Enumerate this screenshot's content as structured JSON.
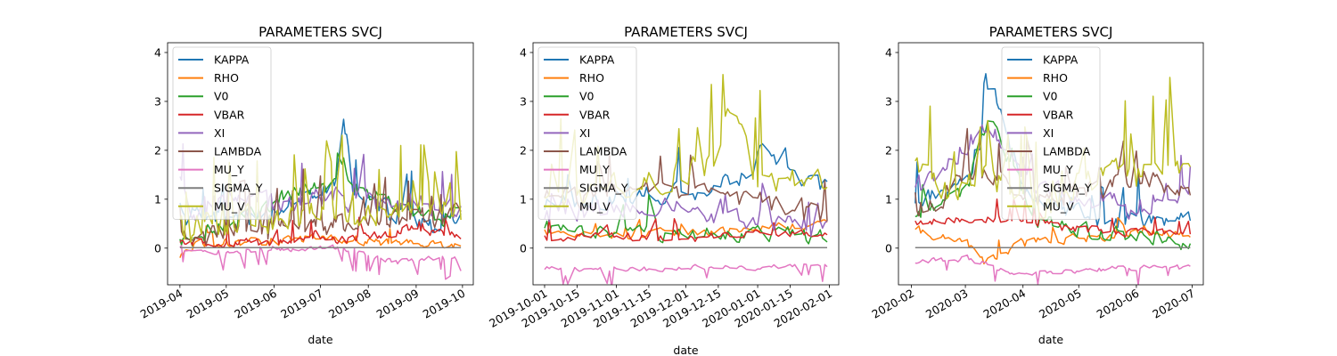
{
  "chart_data": [
    {
      "type": "line",
      "title": "PARAMETERS SVCJ",
      "xlabel": "date",
      "ylabel": "",
      "x_range": [
        "2019-04-01",
        "2019-09-30"
      ],
      "xlim": [
        "2019-03-24",
        "2019-10-08"
      ],
      "ylim": [
        -0.75,
        4.2
      ],
      "yticks": [
        0,
        1,
        2,
        3,
        4
      ],
      "xticks": [
        "2019-04",
        "2019-05",
        "2019-06",
        "2019-07",
        "2019-08",
        "2019-09",
        "2019-10"
      ],
      "legend_position": "upper-left",
      "series": [
        {
          "name": "KAPPA",
          "color": "#1f77b4",
          "anchors": [
            [
              0,
              0.9
            ],
            [
              5,
              0.6
            ],
            [
              12,
              0.8
            ],
            [
              20,
              0.5
            ],
            [
              30,
              0.8
            ],
            [
              40,
              0.6
            ],
            [
              55,
              0.7
            ],
            [
              70,
              0.9
            ],
            [
              80,
              1.0
            ],
            [
              90,
              1.1
            ],
            [
              100,
              1.4
            ],
            [
              106,
              2.7
            ],
            [
              112,
              1.2
            ],
            [
              120,
              1.0
            ],
            [
              135,
              0.8
            ],
            [
              150,
              0.6
            ],
            [
              165,
              0.4
            ],
            [
              180,
              0.8
            ]
          ]
        },
        {
          "name": "RHO",
          "color": "#ff7f0e",
          "anchors": [
            [
              0,
              -0.2
            ],
            [
              5,
              0.0
            ],
            [
              15,
              0.1
            ],
            [
              30,
              0.1
            ],
            [
              60,
              0.15
            ],
            [
              80,
              0.2
            ],
            [
              100,
              0.2
            ],
            [
              120,
              0.15
            ],
            [
              140,
              0.1
            ],
            [
              160,
              0.1
            ],
            [
              180,
              0.05
            ]
          ]
        },
        {
          "name": "V0",
          "color": "#2ca02c",
          "anchors": [
            [
              0,
              0.1
            ],
            [
              10,
              0.2
            ],
            [
              30,
              0.5
            ],
            [
              50,
              0.7
            ],
            [
              70,
              1.1
            ],
            [
              85,
              1.2
            ],
            [
              100,
              1.3
            ],
            [
              106,
              1.7
            ],
            [
              115,
              1.2
            ],
            [
              130,
              1.0
            ],
            [
              150,
              0.8
            ],
            [
              170,
              0.6
            ],
            [
              180,
              0.8
            ]
          ]
        },
        {
          "name": "VBAR",
          "color": "#d62728",
          "anchors": [
            [
              0,
              0.15
            ],
            [
              30,
              0.1
            ],
            [
              60,
              0.1
            ],
            [
              90,
              0.2
            ],
            [
              110,
              0.2
            ],
            [
              130,
              0.3
            ],
            [
              150,
              0.4
            ],
            [
              170,
              0.3
            ],
            [
              180,
              0.2
            ]
          ]
        },
        {
          "name": "XI",
          "color": "#9467bd",
          "anchors": [
            [
              0,
              1.3
            ],
            [
              8,
              0.7
            ],
            [
              20,
              0.9
            ],
            [
              40,
              1.2
            ],
            [
              60,
              0.9
            ],
            [
              80,
              1.0
            ],
            [
              100,
              1.0
            ],
            [
              120,
              1.0
            ],
            [
              140,
              0.9
            ],
            [
              160,
              0.9
            ],
            [
              180,
              0.8
            ]
          ]
        },
        {
          "name": "LAMBDA",
          "color": "#8c564b",
          "anchors": [
            [
              0,
              0.4
            ],
            [
              30,
              0.3
            ],
            [
              60,
              0.4
            ],
            [
              90,
              0.5
            ],
            [
              120,
              0.5
            ],
            [
              150,
              0.6
            ],
            [
              180,
              0.7
            ]
          ]
        },
        {
          "name": "MU_Y",
          "color": "#e377c2",
          "anchors": [
            [
              0,
              0.0
            ],
            [
              20,
              -0.05
            ],
            [
              40,
              -0.05
            ],
            [
              60,
              0.0
            ],
            [
              100,
              0.0
            ],
            [
              120,
              -0.1
            ],
            [
              140,
              -0.3
            ],
            [
              160,
              -0.2
            ],
            [
              180,
              -0.2
            ]
          ]
        },
        {
          "name": "SIGMA_Y",
          "color": "#7f7f7f",
          "anchors": [
            [
              0,
              0.01
            ],
            [
              180,
              0.01
            ]
          ]
        },
        {
          "name": "MU_V",
          "color": "#bcbd22",
          "anchors": [
            [
              0,
              0.4
            ],
            [
              30,
              0.5
            ],
            [
              60,
              0.6
            ],
            [
              90,
              0.7
            ],
            [
              120,
              0.6
            ],
            [
              140,
              0.9
            ],
            [
              160,
              1.0
            ],
            [
              180,
              0.8
            ]
          ]
        }
      ]
    },
    {
      "type": "line",
      "title": "PARAMETERS SVCJ",
      "xlabel": "date",
      "ylabel": "",
      "x_range": [
        "2019-10-01",
        "2020-01-31"
      ],
      "xlim": [
        "2019-09-26",
        "2020-02-05"
      ],
      "ylim": [
        -0.75,
        4.2
      ],
      "yticks": [
        0,
        1,
        2,
        3,
        4
      ],
      "xticks": [
        "2019-10-01",
        "2019-10-15",
        "2019-11-01",
        "2019-11-15",
        "2019-12-01",
        "2019-12-15",
        "2020-01-01",
        "2020-01-15",
        "2020-02-01"
      ],
      "legend_position": "upper-left",
      "series": [
        {
          "name": "KAPPA",
          "color": "#1f77b4",
          "anchors": [
            [
              0,
              0.9
            ],
            [
              15,
              1.0
            ],
            [
              30,
              1.0
            ],
            [
              50,
              1.1
            ],
            [
              70,
              1.2
            ],
            [
              85,
              1.5
            ],
            [
              95,
              2.0
            ],
            [
              105,
              1.5
            ],
            [
              115,
              1.3
            ],
            [
              122,
              1.2
            ]
          ]
        },
        {
          "name": "RHO",
          "color": "#ff7f0e",
          "anchors": [
            [
              0,
              0.3
            ],
            [
              30,
              0.3
            ],
            [
              60,
              0.3
            ],
            [
              90,
              0.4
            ],
            [
              122,
              0.5
            ]
          ]
        },
        {
          "name": "V0",
          "color": "#2ca02c",
          "anchors": [
            [
              0,
              0.4
            ],
            [
              30,
              0.35
            ],
            [
              60,
              0.3
            ],
            [
              90,
              0.25
            ],
            [
              122,
              0.25
            ]
          ]
        },
        {
          "name": "VBAR",
          "color": "#d62728",
          "anchors": [
            [
              0,
              0.2
            ],
            [
              30,
              0.25
            ],
            [
              60,
              0.2
            ],
            [
              90,
              0.3
            ],
            [
              122,
              0.3
            ]
          ]
        },
        {
          "name": "XI",
          "color": "#9467bd",
          "anchors": [
            [
              0,
              0.7
            ],
            [
              30,
              0.8
            ],
            [
              60,
              0.8
            ],
            [
              90,
              0.6
            ],
            [
              122,
              0.5
            ]
          ]
        },
        {
          "name": "LAMBDA",
          "color": "#8c564b",
          "anchors": [
            [
              0,
              1.0
            ],
            [
              30,
              1.1
            ],
            [
              60,
              1.2
            ],
            [
              90,
              1.0
            ],
            [
              122,
              0.6
            ]
          ]
        },
        {
          "name": "MU_Y",
          "color": "#e377c2",
          "anchors": [
            [
              0,
              -0.4
            ],
            [
              30,
              -0.45
            ],
            [
              60,
              -0.4
            ],
            [
              90,
              -0.4
            ],
            [
              122,
              -0.35
            ]
          ]
        },
        {
          "name": "SIGMA_Y",
          "color": "#7f7f7f",
          "anchors": [
            [
              0,
              0.01
            ],
            [
              122,
              0.01
            ]
          ]
        },
        {
          "name": "MU_V",
          "color": "#bcbd22",
          "anchors": [
            [
              0,
              1.0
            ],
            [
              30,
              1.3
            ],
            [
              60,
              1.5
            ],
            [
              75,
              1.8
            ],
            [
              82,
              3.1
            ],
            [
              90,
              1.6
            ],
            [
              105,
              1.4
            ],
            [
              122,
              1.4
            ]
          ]
        }
      ]
    },
    {
      "type": "line",
      "title": "PARAMETERS SVCJ",
      "xlabel": "date",
      "ylabel": "",
      "x_range": [
        "2020-02-01",
        "2020-06-30"
      ],
      "xlim": [
        "2020-01-25",
        "2020-07-07"
      ],
      "ylim": [
        -0.75,
        4.2
      ],
      "yticks": [
        0,
        1,
        2,
        3,
        4
      ],
      "xticks": [
        "2020-02",
        "2020-03",
        "2020-04",
        "2020-05",
        "2020-06",
        "2020-07"
      ],
      "legend_position": "upper-center",
      "series": [
        {
          "name": "KAPPA",
          "color": "#1f77b4",
          "anchors": [
            [
              0,
              1.0
            ],
            [
              20,
              1.2
            ],
            [
              35,
              1.5
            ],
            [
              42,
              3.5
            ],
            [
              50,
              2.5
            ],
            [
              60,
              1.2
            ],
            [
              80,
              0.8
            ],
            [
              100,
              0.6
            ],
            [
              120,
              0.6
            ],
            [
              150,
              0.7
            ]
          ]
        },
        {
          "name": "RHO",
          "color": "#ff7f0e",
          "anchors": [
            [
              0,
              0.4
            ],
            [
              30,
              0.1
            ],
            [
              40,
              -0.3
            ],
            [
              50,
              -0.1
            ],
            [
              60,
              0.1
            ],
            [
              90,
              0.2
            ],
            [
              120,
              0.3
            ],
            [
              150,
              0.3
            ]
          ]
        },
        {
          "name": "V0",
          "color": "#2ca02c",
          "anchors": [
            [
              0,
              0.6
            ],
            [
              30,
              1.2
            ],
            [
              42,
              2.8
            ],
            [
              55,
              1.5
            ],
            [
              70,
              0.5
            ],
            [
              100,
              0.3
            ],
            [
              130,
              0.2
            ],
            [
              150,
              0.1
            ]
          ]
        },
        {
          "name": "VBAR",
          "color": "#d62728",
          "anchors": [
            [
              0,
              0.5
            ],
            [
              40,
              0.6
            ],
            [
              60,
              0.5
            ],
            [
              90,
              0.4
            ],
            [
              120,
              0.3
            ],
            [
              150,
              0.3
            ]
          ]
        },
        {
          "name": "XI",
          "color": "#9467bd",
          "anchors": [
            [
              0,
              1.1
            ],
            [
              40,
              2.5
            ],
            [
              60,
              1.5
            ],
            [
              90,
              1.0
            ],
            [
              120,
              0.8
            ],
            [
              150,
              1.1
            ]
          ]
        },
        {
          "name": "LAMBDA",
          "color": "#8c564b",
          "anchors": [
            [
              0,
              0.8
            ],
            [
              40,
              1.5
            ],
            [
              70,
              1.0
            ],
            [
              100,
              1.2
            ],
            [
              120,
              1.5
            ],
            [
              150,
              1.0
            ]
          ]
        },
        {
          "name": "MU_Y",
          "color": "#e377c2",
          "anchors": [
            [
              0,
              -0.3
            ],
            [
              30,
              -0.2
            ],
            [
              55,
              -0.5
            ],
            [
              80,
              -0.5
            ],
            [
              100,
              -0.45
            ],
            [
              120,
              -0.4
            ],
            [
              150,
              -0.4
            ]
          ]
        },
        {
          "name": "SIGMA_Y",
          "color": "#7f7f7f",
          "anchors": [
            [
              0,
              0.01
            ],
            [
              150,
              0.01
            ]
          ]
        },
        {
          "name": "MU_V",
          "color": "#bcbd22",
          "anchors": [
            [
              0,
              2.0
            ],
            [
              20,
              1.0
            ],
            [
              40,
              1.5
            ],
            [
              70,
              0.8
            ],
            [
              100,
              1.5
            ],
            [
              130,
              1.5
            ],
            [
              150,
              1.5
            ]
          ]
        }
      ]
    }
  ]
}
